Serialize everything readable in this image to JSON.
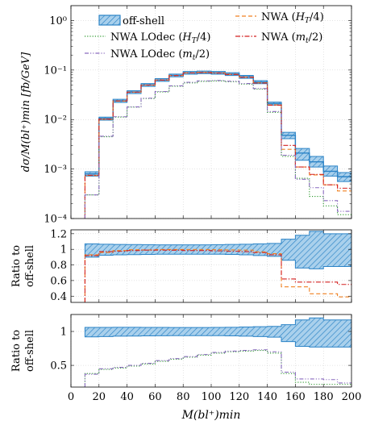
{
  "figure": {
    "main_ylabel": "dσ/M(bl⁺)min [fb/GeV]",
    "ratio1_ylabel": [
      "Ratio to",
      "off-shell"
    ],
    "ratio2_ylabel": [
      "Ratio to",
      "off-shell"
    ],
    "xlabel": "M(bl⁺)min"
  },
  "chart_data": [
    {
      "type": "line",
      "title": "",
      "ylabel": "dσ/M(bl⁺)min [fb/GeV]",
      "xlabel": "",
      "xlim": [
        0,
        200
      ],
      "ylim": [
        0.0001,
        2
      ],
      "yscale": "log",
      "xticks": [
        0,
        20,
        40,
        60,
        80,
        100,
        120,
        140,
        160,
        180,
        200
      ],
      "yticks": [
        0.0001,
        0.001,
        0.01,
        0.1,
        1
      ],
      "ytick_labels": [
        "10⁻⁴",
        "10⁻³",
        "10⁻²",
        "10⁻¹",
        "10⁰"
      ],
      "grid": true,
      "legend": "top",
      "bin_edges": [
        10,
        20,
        30,
        40,
        50,
        60,
        70,
        80,
        90,
        100,
        110,
        120,
        130,
        140,
        150,
        160,
        170,
        180,
        190,
        200
      ],
      "series": [
        {
          "name": "off-shell",
          "style": "band",
          "color": "#2b83c6",
          "values": [
            0.0008,
            0.0105,
            0.024,
            0.036,
            0.05,
            0.063,
            0.078,
            0.088,
            0.09,
            0.088,
            0.083,
            0.073,
            0.057,
            0.021,
            0.0048,
            0.0021,
            0.0014,
            0.0009,
            0.0007
          ],
          "band_low": [
            0.00072,
            0.0097,
            0.0222,
            0.0335,
            0.0468,
            0.059,
            0.073,
            0.0825,
            0.0845,
            0.0825,
            0.0775,
            0.068,
            0.053,
            0.0195,
            0.0041,
            0.0015,
            0.0011,
            0.00072,
            0.00056
          ],
          "band_high": [
            0.00088,
            0.0112,
            0.0256,
            0.0383,
            0.0532,
            0.067,
            0.083,
            0.0935,
            0.0955,
            0.0935,
            0.0885,
            0.078,
            0.061,
            0.0225,
            0.0055,
            0.0026,
            0.0018,
            0.00115,
            0.00085
          ]
        },
        {
          "name": "NWA (H_T/4)",
          "label_main": "NWA (",
          "label_math": "H",
          "label_sub": "T",
          "label_tail": "/4)",
          "style": "dashed",
          "color": "#f08020",
          "values": [
            0.00074,
            0.0101,
            0.0236,
            0.0358,
            0.0496,
            0.0628,
            0.0778,
            0.0878,
            0.0898,
            0.0876,
            0.0823,
            0.0722,
            0.0552,
            0.0198,
            0.0025,
            0.0011,
            0.00076,
            0.00048,
            0.00036
          ]
        },
        {
          "name": "NWA LOdec (H_T/4)",
          "label_main": "NWA LOdec (",
          "label_math": "H",
          "label_sub": "T",
          "label_tail": "/4)",
          "style": "dotted",
          "color": "#2e9a2e",
          "values": [
            0.0003,
            0.0045,
            0.0112,
            0.0178,
            0.0265,
            0.036,
            0.047,
            0.055,
            0.059,
            0.06,
            0.058,
            0.052,
            0.041,
            0.014,
            0.0018,
            0.00065,
            0.00028,
            0.00018,
            0.00012
          ]
        },
        {
          "name": "NWA (m_t/2)",
          "label_main": "NWA (",
          "label_math": "m",
          "label_sub": "t",
          "label_tail": "/2)",
          "style": "dashdot",
          "color": "#d42020",
          "values": [
            0.00075,
            0.0102,
            0.0238,
            0.0358,
            0.0497,
            0.0627,
            0.0775,
            0.0872,
            0.0892,
            0.0869,
            0.0815,
            0.0714,
            0.0546,
            0.0195,
            0.003,
            0.0011,
            0.00078,
            0.00048,
            0.00041
          ]
        },
        {
          "name": "NWA LOdec (m_t/2)",
          "label_main": "NWA LOdec (",
          "label_math": "m",
          "label_sub": "t",
          "label_tail": "/2)",
          "style": "dashdotdot",
          "color": "#8a6bbf",
          "values": [
            0.0003,
            0.0046,
            0.0114,
            0.018,
            0.027,
            0.0368,
            0.048,
            0.0565,
            0.0605,
            0.0615,
            0.0595,
            0.0535,
            0.0423,
            0.0145,
            0.0019,
            0.00062,
            0.00042,
            0.00023,
            0.00014
          ]
        }
      ]
    },
    {
      "type": "line",
      "title": "",
      "ylabel": "Ratio to off-shell",
      "xlim": [
        0,
        200
      ],
      "ylim": [
        0.32,
        1.25
      ],
      "yticks": [
        0.4,
        0.6,
        0.8,
        1,
        1.2
      ],
      "ytick_labels": [
        "0.4",
        "0.6",
        "0.8",
        "1",
        "1.2"
      ],
      "grid": true,
      "bin_edges": [
        10,
        20,
        30,
        40,
        50,
        60,
        70,
        80,
        90,
        100,
        110,
        120,
        130,
        140,
        150,
        160,
        170,
        180,
        190,
        200
      ],
      "series": [
        {
          "name": "off-shell",
          "style": "band",
          "color": "#2b83c6",
          "band_low": [
            0.9,
            0.925,
            0.93,
            0.932,
            0.935,
            0.937,
            0.938,
            0.938,
            0.938,
            0.938,
            0.935,
            0.93,
            0.92,
            0.91,
            0.86,
            0.76,
            0.75,
            0.78,
            0.78
          ],
          "band_high": [
            1.07,
            1.065,
            1.063,
            1.062,
            1.06,
            1.058,
            1.058,
            1.058,
            1.058,
            1.06,
            1.063,
            1.065,
            1.07,
            1.075,
            1.13,
            1.18,
            1.23,
            1.2,
            1.2
          ]
        },
        {
          "name": "NWA (H_T/4)",
          "style": "dashed",
          "color": "#f08020",
          "values": [
            0.93,
            0.96,
            0.985,
            0.995,
            0.992,
            0.997,
            0.997,
            0.998,
            0.998,
            0.995,
            0.992,
            0.99,
            0.968,
            0.945,
            0.52,
            0.52,
            0.43,
            0.43,
            0.39
          ]
        },
        {
          "name": "NWA (m_t/2)",
          "style": "dashdot",
          "color": "#d42020",
          "values": [
            0.92,
            0.97,
            0.975,
            0.985,
            0.99,
            0.99,
            0.988,
            0.985,
            0.985,
            0.98,
            0.975,
            0.97,
            0.958,
            0.93,
            0.62,
            0.58,
            0.58,
            0.58,
            0.55
          ]
        }
      ]
    },
    {
      "type": "line",
      "title": "",
      "ylabel": "Ratio to off-shell",
      "xlabel": "M(bl⁺)min",
      "xlim": [
        0,
        200
      ],
      "ylim": [
        0.18,
        1.25
      ],
      "yticks": [
        0.5,
        1
      ],
      "ytick_labels": [
        "0.5",
        "1"
      ],
      "xticks": [
        0,
        20,
        40,
        60,
        80,
        100,
        120,
        140,
        160,
        180,
        200
      ],
      "xtick_labels": [
        "0",
        "20",
        "40",
        "60",
        "80",
        "100",
        "120",
        "140",
        "160",
        "180",
        "200"
      ],
      "grid": true,
      "bin_edges": [
        10,
        20,
        30,
        40,
        50,
        60,
        70,
        80,
        90,
        100,
        110,
        120,
        130,
        140,
        150,
        160,
        170,
        180,
        190,
        200
      ],
      "series": [
        {
          "name": "off-shell",
          "style": "band",
          "color": "#2b83c6",
          "band_low": [
            0.92,
            0.925,
            0.93,
            0.932,
            0.935,
            0.937,
            0.938,
            0.938,
            0.938,
            0.938,
            0.935,
            0.93,
            0.925,
            0.915,
            0.85,
            0.78,
            0.77,
            0.77,
            0.77
          ],
          "band_high": [
            1.06,
            1.06,
            1.062,
            1.062,
            1.06,
            1.06,
            1.058,
            1.058,
            1.058,
            1.06,
            1.062,
            1.065,
            1.07,
            1.075,
            1.1,
            1.17,
            1.2,
            1.17,
            1.17
          ]
        },
        {
          "name": "NWA LOdec (H_T/4)",
          "style": "dotted",
          "color": "#2e9a2e",
          "values": [
            0.38,
            0.44,
            0.46,
            0.49,
            0.52,
            0.56,
            0.59,
            0.62,
            0.65,
            0.68,
            0.7,
            0.71,
            0.72,
            0.68,
            0.38,
            0.25,
            0.22,
            0.22,
            0.22
          ]
        },
        {
          "name": "NWA LOdec (m_t/2)",
          "style": "dashdotdot",
          "color": "#8a6bbf",
          "values": [
            0.37,
            0.45,
            0.47,
            0.5,
            0.53,
            0.57,
            0.6,
            0.63,
            0.66,
            0.69,
            0.71,
            0.72,
            0.73,
            0.7,
            0.4,
            0.3,
            0.3,
            0.29,
            0.24
          ]
        }
      ]
    }
  ]
}
